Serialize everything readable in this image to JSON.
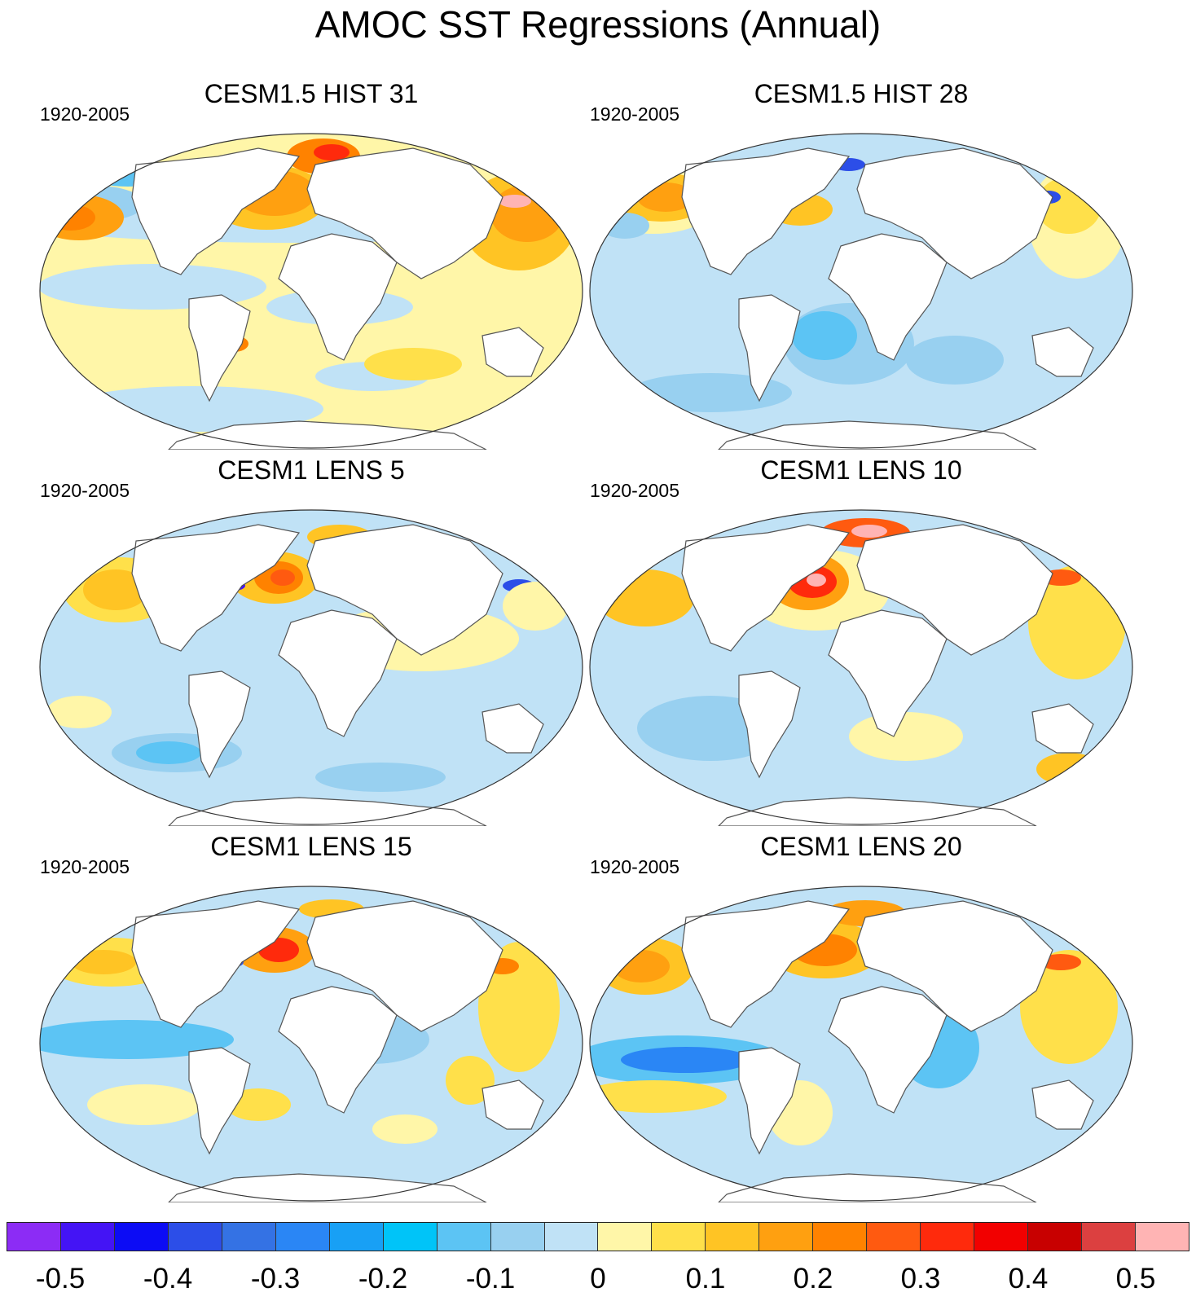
{
  "title": "AMOC SST Regressions (Annual)",
  "panels": [
    {
      "title": "CESM1.5 HIST 31",
      "period": "1920-2005"
    },
    {
      "title": "CESM1.5 HIST 28",
      "period": "1920-2005"
    },
    {
      "title": "CESM1 LENS 5",
      "period": "1920-2005"
    },
    {
      "title": "CESM1 LENS 10",
      "period": "1920-2005"
    },
    {
      "title": "CESM1 LENS 15",
      "period": "1920-2005"
    },
    {
      "title": "CESM1 LENS 20",
      "period": "1920-2005"
    }
  ],
  "colorbar": {
    "colors": [
      "#8c2cf5",
      "#4414f5",
      "#0c0cf5",
      "#2c4ee8",
      "#3472e4",
      "#2a86f5",
      "#18a0f5",
      "#00c4f8",
      "#5cc4f4",
      "#98d0f0",
      "#c0e2f6",
      "#fff6a8",
      "#ffe04a",
      "#ffc424",
      "#ffa010",
      "#ff8200",
      "#ff5a10",
      "#ff2a0c",
      "#f20000",
      "#c80000",
      "#dc4040",
      "#ffb4b4"
    ],
    "tick_labels": [
      "-0.5",
      "-0.4",
      "-0.3",
      "-0.2",
      "-0.1",
      "0",
      "0.1",
      "0.2",
      "0.3",
      "0.4",
      "0.5"
    ]
  }
}
